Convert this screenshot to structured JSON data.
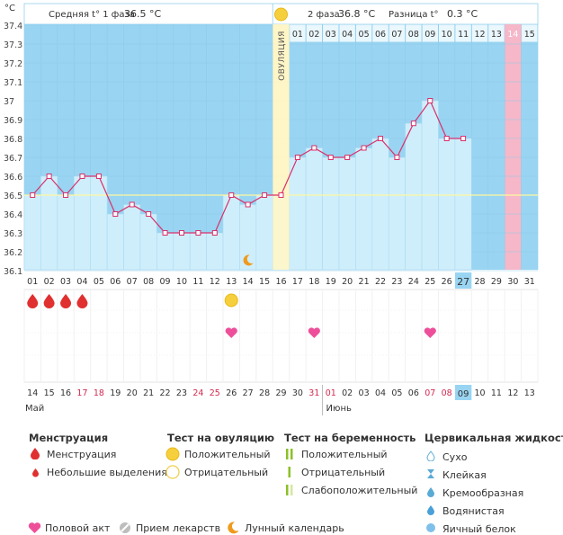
{
  "chart_data": {
    "type": "line",
    "unit_label": "°C",
    "header": {
      "phase1_label": "Средняя t° 1 фаза",
      "phase1_value": "36.5 °C",
      "phase2_label": "2 фаза",
      "phase2_value": "36.8 °C",
      "diff_label": "Разница t°",
      "diff_value": "0.3 °C"
    },
    "ovulation_label": "ОВУЛЯЦИЯ",
    "y_ticks": [
      "37.4",
      "37.3",
      "37.2",
      "37.1",
      "37",
      "36.9",
      "36.8",
      "36.7",
      "36.6",
      "36.5",
      "36.4",
      "36.3",
      "36.2",
      "36.1"
    ],
    "ylim": [
      36.1,
      37.4
    ],
    "coverline": 36.5,
    "cycle_days": [
      "01",
      "02",
      "03",
      "04",
      "05",
      "06",
      "07",
      "08",
      "09",
      "10",
      "11",
      "12",
      "13",
      "14",
      "15",
      "16",
      "17",
      "18",
      "19",
      "20",
      "21",
      "22",
      "23",
      "24",
      "25",
      "26",
      "27",
      "28",
      "29",
      "30",
      "31"
    ],
    "temperatures": [
      36.5,
      36.6,
      36.5,
      36.6,
      36.6,
      36.4,
      36.45,
      36.4,
      36.3,
      36.3,
      36.3,
      36.3,
      36.5,
      36.45,
      36.5,
      36.5,
      36.7,
      36.75,
      36.7,
      36.7,
      36.75,
      36.8,
      36.7,
      36.88,
      37.0,
      36.8,
      36.8,
      null,
      null,
      null,
      null
    ],
    "phase2_days": [
      "01",
      "02",
      "03",
      "04",
      "05",
      "06",
      "07",
      "08",
      "09",
      "10",
      "11",
      "12",
      "13",
      "14",
      "15"
    ],
    "ovulation_day_index": 15,
    "current_day_index": 26,
    "expected_period_day_index": 29,
    "calendar_dates": [
      "14",
      "15",
      "16",
      "17",
      "18",
      "19",
      "20",
      "21",
      "22",
      "23",
      "24",
      "25",
      "26",
      "27",
      "28",
      "29",
      "30",
      "31",
      "01",
      "02",
      "03",
      "04",
      "05",
      "06",
      "07",
      "08",
      "09",
      "10",
      "11",
      "12",
      "13"
    ],
    "weekend_indices": [
      3,
      4,
      10,
      11,
      17,
      18,
      24,
      25
    ],
    "today_calendar_index": 26,
    "month_may": "Май",
    "month_june": "Июнь",
    "june_start_index": 18,
    "menstruation_indices": [
      0,
      1,
      2,
      3
    ],
    "ovulation_test_indices": [
      12
    ],
    "intercourse_indices": [
      12,
      17,
      24
    ],
    "moon_index": 13,
    "colors": {
      "chart_bg": "#99d5f2",
      "bar_fill": "#cfeefb",
      "line": "#d9306b",
      "ovulation_band": "#fff6c6",
      "period_band": "#f6b7c9",
      "today": "#99d5f2",
      "coverline": "#fff8a0"
    }
  },
  "legend": {
    "menstruation": {
      "title": "Менструация",
      "items": [
        "Менструация",
        "Небольшие выделения"
      ]
    },
    "ovulation_test": {
      "title": "Тест на овуляцию",
      "items": [
        "Положительный",
        "Отрицательный"
      ]
    },
    "pregnancy_test": {
      "title": "Тест на беременность",
      "items": [
        "Положительный",
        "Отрицательный",
        "Слабоположительный"
      ]
    },
    "cervical": {
      "title": "Цервикальная жидкость",
      "items": [
        "Сухо",
        "Клейкая",
        "Кремообразная",
        "Водянистая",
        "Яичный белок"
      ]
    },
    "bottom": {
      "intercourse": "Половой акт",
      "medication": "Прием лекарств",
      "lunar": "Лунный календарь"
    }
  }
}
